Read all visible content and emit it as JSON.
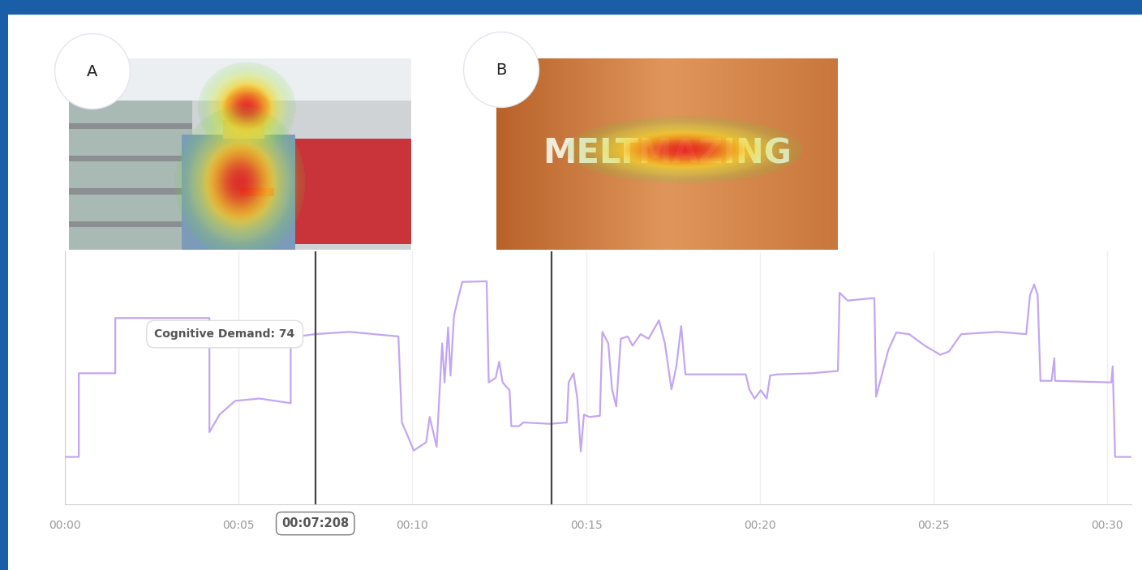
{
  "chart_data": {
    "type": "line",
    "x": [
      0,
      0.4,
      0.4,
      1.45,
      1.45,
      4.16,
      4.16,
      4.45,
      4.9,
      5.6,
      6.5,
      6.5,
      7.2,
      8.2,
      9.6,
      9.7,
      9.9,
      10.04,
      10.4,
      10.5,
      10.7,
      10.86,
      10.93,
      11.03,
      11.1,
      11.2,
      11.34,
      11.44,
      12.14,
      12.2,
      12.4,
      12.5,
      12.6,
      12.8,
      12.85,
      13.07,
      13.2,
      13.96,
      14.45,
      14.5,
      14.64,
      14.75,
      14.85,
      14.94,
      15.1,
      15.4,
      15.47,
      15.64,
      15.75,
      15.87,
      16.0,
      16.2,
      16.34,
      16.57,
      16.8,
      17.1,
      17.27,
      17.46,
      17.6,
      17.74,
      17.86,
      19.6,
      19.7,
      19.85,
      20.03,
      20.2,
      20.3,
      20.5,
      21.5,
      22.25,
      22.3,
      22.53,
      23.3,
      23.35,
      23.7,
      23.93,
      24.3,
      24.75,
      25.2,
      25.45,
      25.8,
      26.85,
      27.67,
      27.78,
      27.9,
      28.0,
      28.08,
      28.4,
      28.48,
      28.5,
      30.12,
      30.16,
      30.23,
      30.7
    ],
    "values": [
      20.6,
      20.6,
      57,
      57,
      81,
      81,
      31.4,
      39,
      45,
      46,
      44,
      72.6,
      74,
      75,
      73,
      35.6,
      28.6,
      23.4,
      27,
      38,
      25,
      70,
      53,
      77,
      56,
      82,
      91,
      96.7,
      97,
      53,
      55,
      62,
      53,
      49.6,
      34,
      34,
      35.6,
      35,
      35.6,
      53,
      57,
      46,
      23,
      39,
      38,
      38.5,
      75,
      70,
      50,
      42.6,
      72,
      73,
      69,
      74,
      72,
      80,
      70,
      50,
      60,
      77.5,
      56.5,
      56.5,
      50,
      46,
      49.6,
      46,
      56,
      56.5,
      57,
      58,
      92,
      88.6,
      89.7,
      46.8,
      67,
      74.7,
      74,
      69,
      65,
      66.5,
      74,
      75,
      74,
      91,
      95.6,
      91,
      53.7,
      53.7,
      63.5,
      53.7,
      53,
      60,
      20.6,
      20.6
    ],
    "color": "#c3a6f2",
    "xlim": [
      0,
      30.7
    ],
    "xticks": [
      {
        "value": 0,
        "label": "00:00"
      },
      {
        "value": 5,
        "label": "00:05"
      },
      {
        "value": 10,
        "label": "00:10"
      },
      {
        "value": 15,
        "label": "00:15"
      },
      {
        "value": 20,
        "label": "00:20"
      },
      {
        "value": 25,
        "label": "00:25"
      },
      {
        "value": 30,
        "label": "00:30"
      }
    ],
    "ylim": [
      0,
      110
    ],
    "yticks": [],
    "tick_labels": "x",
    "grid": true,
    "cursor": {
      "x": 7.208,
      "label": "00:07:208",
      "tooltip": "Cognitive Demand: 74",
      "value": 74
    },
    "frames": [
      {
        "label": "A",
        "x": 7.208
      },
      {
        "label": "B",
        "x": 14.0,
        "text": "MELTMAZING"
      }
    ]
  }
}
